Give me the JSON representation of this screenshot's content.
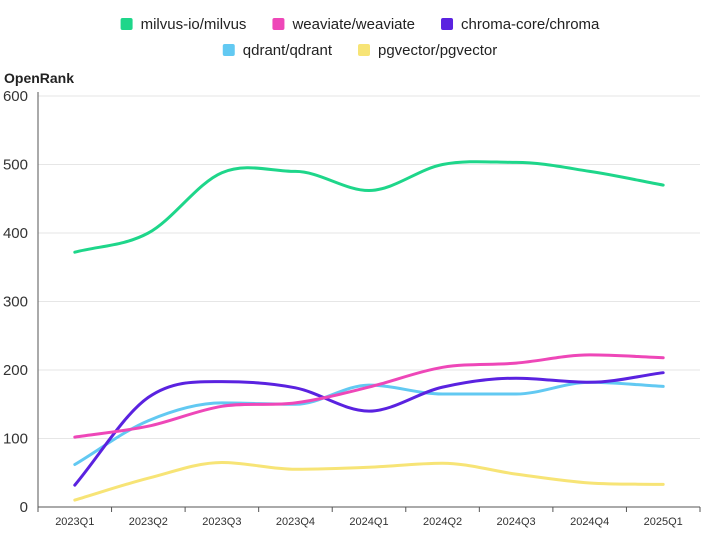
{
  "chart_data": {
    "type": "line",
    "ylabel": "OpenRank",
    "ylim": [
      0,
      600
    ],
    "yticks": [
      "0",
      "100",
      "200",
      "300",
      "400",
      "500",
      "600"
    ],
    "categories": [
      "2023Q1",
      "2023Q2",
      "2023Q3",
      "2023Q4",
      "2024Q1",
      "2024Q2",
      "2024Q3",
      "2024Q4",
      "2025Q1"
    ],
    "grid": true,
    "legend_position": "top",
    "series": [
      {
        "name": "milvus-io/milvus",
        "color": "#1ed68a",
        "values": [
          372,
          400,
          488,
          490,
          462,
          500,
          503,
          490,
          470
        ]
      },
      {
        "name": "weaviate/weaviate",
        "color": "#ee47b8",
        "values": [
          102,
          118,
          147,
          152,
          175,
          204,
          210,
          222,
          218
        ]
      },
      {
        "name": "chroma-core/chroma",
        "color": "#5a22e0",
        "values": [
          32,
          160,
          183,
          174,
          140,
          175,
          188,
          182,
          196
        ]
      },
      {
        "name": "qdrant/qdrant",
        "color": "#62c9f2",
        "values": [
          62,
          126,
          152,
          150,
          178,
          165,
          165,
          182,
          176
        ]
      },
      {
        "name": "pgvector/pgvector",
        "color": "#f7e476",
        "values": [
          10,
          42,
          65,
          55,
          58,
          64,
          48,
          35,
          33
        ]
      }
    ]
  }
}
